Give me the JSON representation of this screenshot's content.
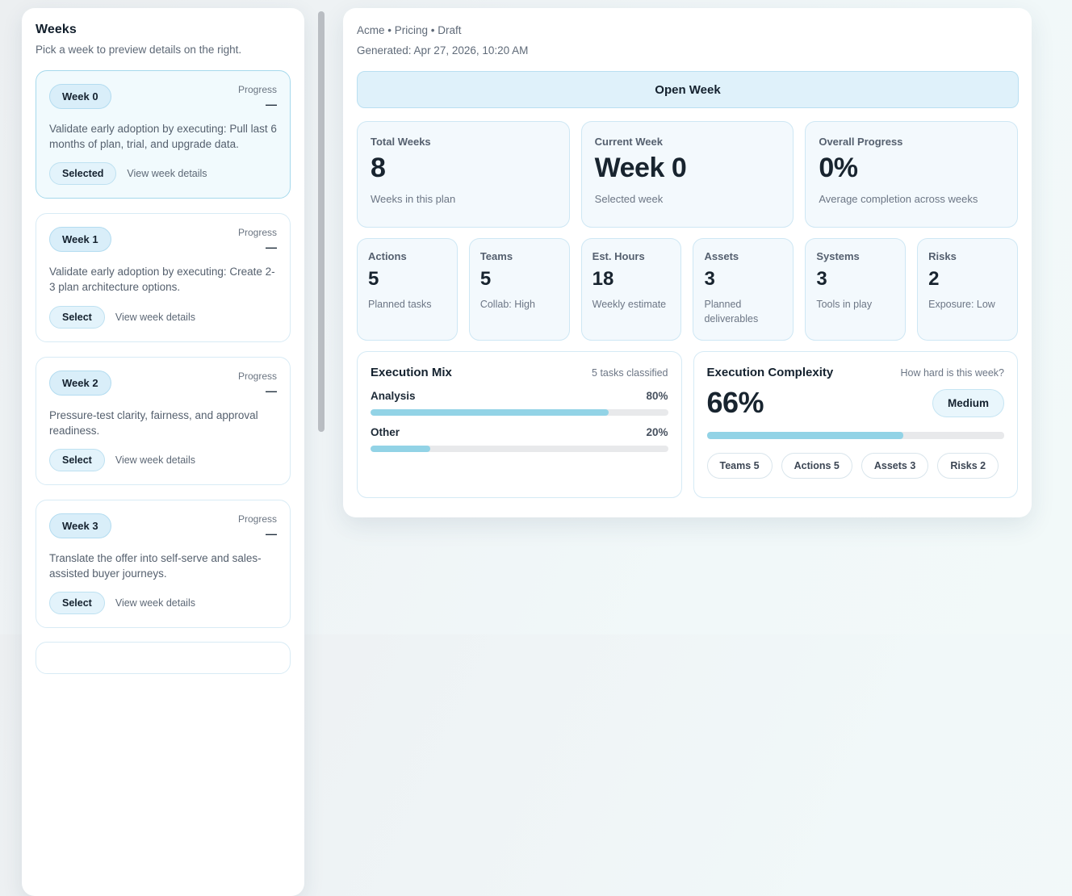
{
  "sidebar": {
    "title": "Weeks",
    "subtitle": "Pick a week to preview details on the right.",
    "progress_label": "Progress",
    "progress_value": "—",
    "view_details_label": "View week details",
    "weeks": [
      {
        "badge": "Week 0",
        "description": "Validate early adoption by executing: Pull last 6 months of plan, trial, and upgrade data.",
        "action": "Selected",
        "selected": true
      },
      {
        "badge": "Week 1",
        "description": "Validate early adoption by executing: Create 2-3 plan architecture options.",
        "action": "Select",
        "selected": false
      },
      {
        "badge": "Week 2",
        "description": "Pressure-test clarity, fairness, and approval readiness.",
        "action": "Select",
        "selected": false
      },
      {
        "badge": "Week 3",
        "description": "Translate the offer into self-serve and sales-assisted buyer journeys.",
        "action": "Select",
        "selected": false
      }
    ]
  },
  "main": {
    "breadcrumb": "Acme • Pricing • Draft",
    "generated": "Generated: Apr 27, 2026, 10:20 AM",
    "open_week_button": "Open Week",
    "stats": [
      {
        "label": "Total Weeks",
        "value": "8",
        "sub": "Weeks in this plan"
      },
      {
        "label": "Current Week",
        "value": "Week 0",
        "sub": "Selected week"
      },
      {
        "label": "Overall Progress",
        "value": "0%",
        "sub": "Average completion across weeks"
      }
    ],
    "mini_stats": [
      {
        "label": "Actions",
        "value": "5",
        "sub": "Planned tasks"
      },
      {
        "label": "Teams",
        "value": "5",
        "sub": "Collab: High"
      },
      {
        "label": "Est. Hours",
        "value": "18",
        "sub": "Weekly estimate"
      },
      {
        "label": "Assets",
        "value": "3",
        "sub": "Planned deliverables"
      },
      {
        "label": "Systems",
        "value": "3",
        "sub": "Tools in play"
      },
      {
        "label": "Risks",
        "value": "2",
        "sub": "Exposure: Low"
      }
    ],
    "execution_mix": {
      "title": "Execution Mix",
      "meta": "5 tasks classified",
      "rows": [
        {
          "label": "Analysis",
          "pct_label": "80%",
          "pct": 80
        },
        {
          "label": "Other",
          "pct_label": "20%",
          "pct": 20
        }
      ]
    },
    "execution_complexity": {
      "title": "Execution Complexity",
      "meta": "How hard is this week?",
      "value": "66%",
      "pct": 66,
      "badge": "Medium",
      "chips": [
        "Teams 5",
        "Actions 5",
        "Assets 3",
        "Risks 2"
      ]
    }
  },
  "colors": {
    "accent_fill": "#92d3e6",
    "accent_bg": "#dff1fa",
    "accent_border": "#b9dff1",
    "card_tint": "#f3f9fd",
    "dark_text": "#18242f"
  }
}
